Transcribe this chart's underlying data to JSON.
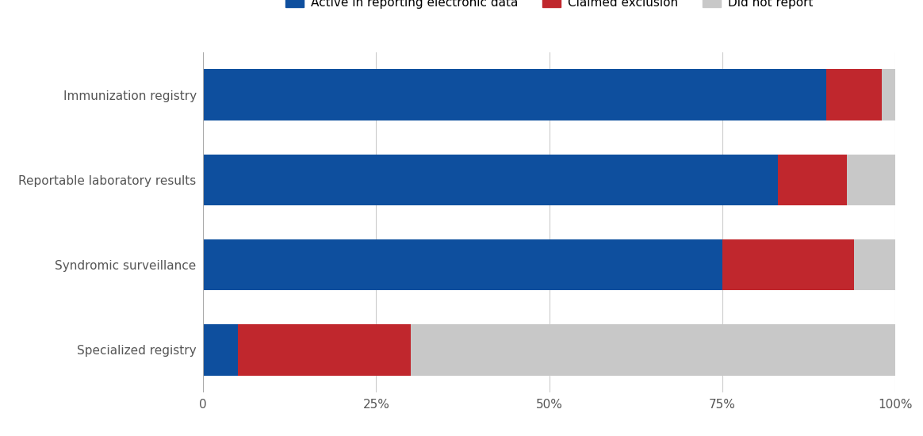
{
  "categories": [
    "Immunization registry",
    "Reportable laboratory results",
    "Syndromic surveillance",
    "Specialized registry"
  ],
  "series": {
    "Active in reporting electronic data": [
      90,
      83,
      75,
      5
    ],
    "Claimed exclusion": [
      8,
      10,
      19,
      25
    ],
    "Did not report": [
      2,
      7,
      6,
      70
    ]
  },
  "colors": {
    "Active in reporting electronic data": "#0e4f9e",
    "Claimed exclusion": "#c0272d",
    "Did not report": "#c8c8c8"
  },
  "legend_labels": [
    "Active in reporting electronic data",
    "Claimed exclusion",
    "Did not report"
  ],
  "xticks": [
    0,
    25,
    50,
    75,
    100
  ],
  "xtick_labels": [
    "0",
    "25%",
    "50%",
    "75%",
    "100%"
  ],
  "xlim": [
    0,
    100
  ],
  "background_color": "#ffffff",
  "grid_color": "#cccccc",
  "bar_height": 0.6,
  "figsize": [
    11.64,
    5.5
  ],
  "dpi": 100
}
